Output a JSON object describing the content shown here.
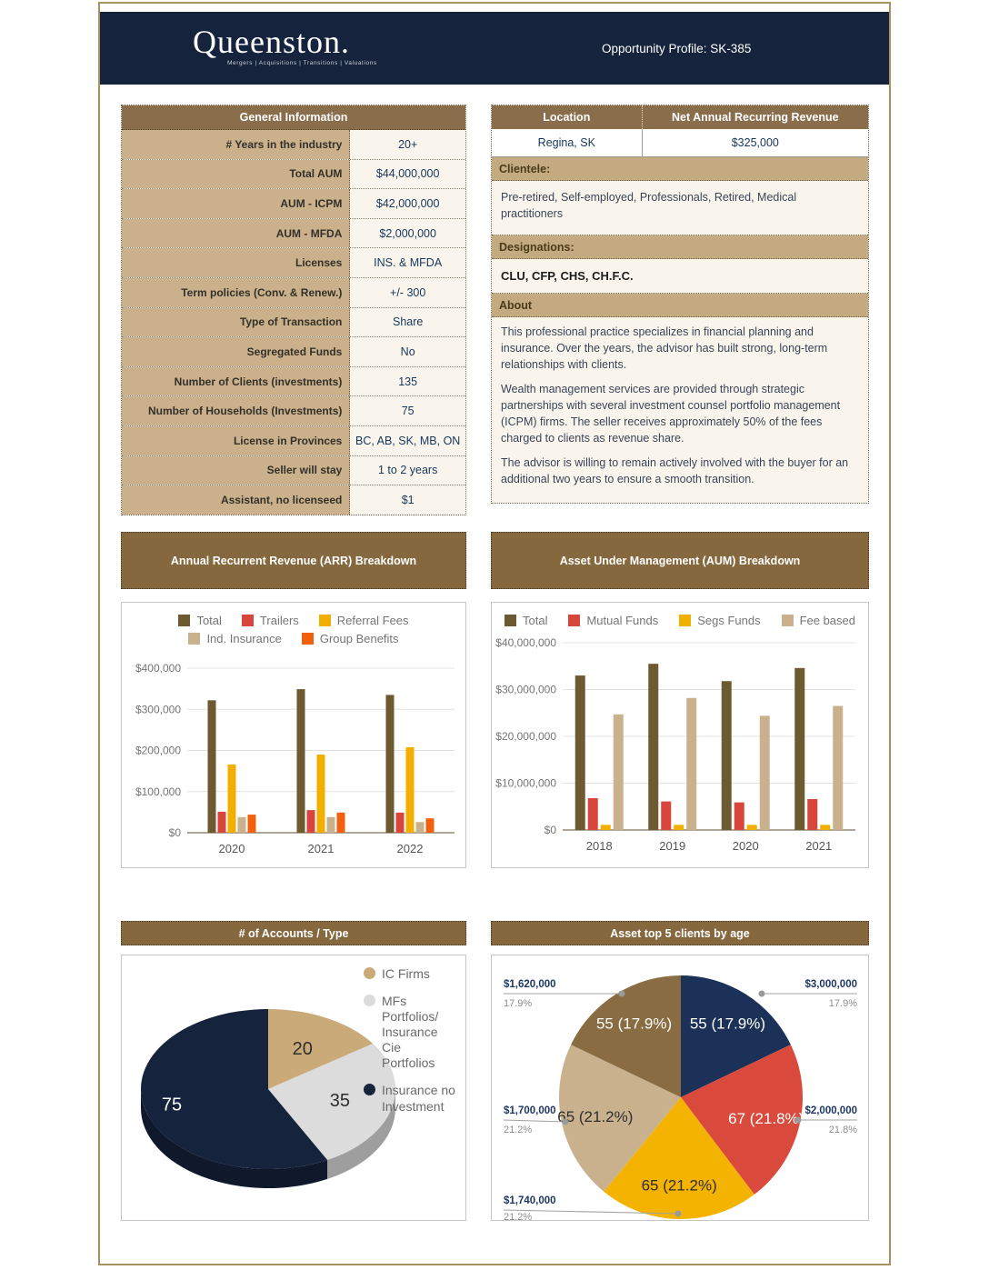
{
  "header": {
    "logo": "Queenston.",
    "tagline": "Mergers | Acquisitions | Transitions | Valuations",
    "profile_label": "Opportunity Profile: SK-385"
  },
  "general_info": {
    "title": "General Information",
    "rows": [
      {
        "label": "# Years in the industry",
        "value": "20+"
      },
      {
        "label": "Total AUM",
        "value": "$44,000,000"
      },
      {
        "label": "AUM - ICPM",
        "value": "$42,000,000"
      },
      {
        "label": "AUM  - MFDA",
        "value": "$2,000,000"
      },
      {
        "label": "Licenses",
        "value": "INS. & MFDA"
      },
      {
        "label": "Term policies (Conv. & Renew.)",
        "value": "+/- 300"
      },
      {
        "label": "Type of Transaction",
        "value": "Share"
      },
      {
        "label": "Segregated Funds",
        "value": "No"
      },
      {
        "label": "Number of Clients (investments)",
        "value": "135"
      },
      {
        "label": "Number of Households (Investments)",
        "value": "75"
      },
      {
        "label": "License in  Provinces",
        "value": "BC, AB, SK, MB, ON"
      },
      {
        "label": "Seller will stay",
        "value": "1 to 2 years"
      },
      {
        "label": "Assistant, no licenseed",
        "value": "$1"
      }
    ]
  },
  "location_table": {
    "location_header": "Location",
    "revenue_header": "Net Annual Recurring Revenue",
    "location": "Regina, SK",
    "revenue": "$325,000"
  },
  "clientele": {
    "title": "Clientele:",
    "text": "Pre-retired, Self-employed, Professionals, Retired, Medical practitioners"
  },
  "designations": {
    "title": "Designations:",
    "text": "CLU, CFP, CHS, CH.F.C."
  },
  "about": {
    "title": "About",
    "paragraphs": [
      "This professional practice specializes in financial planning and insurance. Over the years, the advisor has built strong, long-term relationships with clients.",
      "Wealth management services are provided through strategic partnerships with several investment counsel portfolio management (ICPM) firms. The seller receives approximately 50% of the fees charged to clients as revenue share.",
      "The advisor is willing to remain actively involved with the buyer for an additional two years to ensure a smooth transition."
    ]
  },
  "chart_data": [
    {
      "id": "arr",
      "type": "bar",
      "title": "Annual Recurrent Revenue (ARR) Breakdown",
      "categories": [
        "2020",
        "2021",
        "2022"
      ],
      "series": [
        {
          "name": "Total",
          "color": "#6e5a31",
          "values": [
            322000,
            349000,
            335000
          ]
        },
        {
          "name": "Trailers",
          "color": "#d8453a",
          "values": [
            51000,
            55000,
            49000
          ]
        },
        {
          "name": "Referral Fees",
          "color": "#f2af00",
          "values": [
            166000,
            190000,
            208000
          ]
        },
        {
          "name": "Ind. Insurance",
          "color": "#c9b18e",
          "values": [
            38000,
            38000,
            26000
          ]
        },
        {
          "name": "Group Benefits",
          "color": "#f2600e",
          "values": [
            44000,
            49000,
            35000
          ]
        }
      ],
      "ylim": [
        0,
        400000
      ],
      "yticks": [
        {
          "value": 0,
          "label": "$0"
        },
        {
          "value": 100000,
          "label": "$100,000"
        },
        {
          "value": 200000,
          "label": "$200,000"
        },
        {
          "value": 300000,
          "label": "$300,000"
        },
        {
          "value": 400000,
          "label": "$400,000"
        }
      ],
      "grid": true,
      "legend_position": "top"
    },
    {
      "id": "aum",
      "type": "bar",
      "title": "Asset Under Management (AUM) Breakdown",
      "categories": [
        "2018",
        "2019",
        "2020",
        "2021"
      ],
      "series": [
        {
          "name": "Total",
          "color": "#6e5a31",
          "values": [
            33000000,
            35500000,
            31800000,
            34600000
          ]
        },
        {
          "name": "Mutual Funds",
          "color": "#d8453a",
          "values": [
            6800000,
            6100000,
            5900000,
            6600000
          ]
        },
        {
          "name": "Segs Funds",
          "color": "#f2af00",
          "values": [
            1100000,
            1100000,
            1100000,
            1100000
          ]
        },
        {
          "name": "Fee based",
          "color": "#c9b18e",
          "values": [
            24700000,
            28200000,
            24400000,
            26500000
          ]
        }
      ],
      "ylim": [
        0,
        40000000
      ],
      "yticks": [
        {
          "value": 0,
          "label": "$0"
        },
        {
          "value": 10000000,
          "label": "$10,000,000"
        },
        {
          "value": 20000000,
          "label": "$20,000,000"
        },
        {
          "value": 30000000,
          "label": "$30,000,000"
        },
        {
          "value": 40000000,
          "label": "$40,000,000"
        }
      ],
      "grid": true,
      "legend_position": "top"
    },
    {
      "id": "accounts",
      "type": "pie",
      "style3d": true,
      "title": "# of Accounts / Type",
      "legend_position": "right",
      "slices": [
        {
          "label": "IC Firms",
          "value": 20,
          "color": "#c9aa78"
        },
        {
          "label": "MFs Portfolios/ Insurance Cie Portfolios",
          "value": 35,
          "color": "#dcdcdc"
        },
        {
          "label": "Insurance no Investment",
          "value": 75,
          "color": "#16233d"
        }
      ]
    },
    {
      "id": "top5",
      "type": "pie",
      "style3d": false,
      "title": "Asset top 5 clients by age",
      "legend_position": "none",
      "slices": [
        {
          "label": "55 (17.9%)",
          "value": 17.9,
          "amount": "$3,000,000",
          "pct": "17.9%",
          "color": "#1b3158"
        },
        {
          "label": "67 (21.8%)",
          "value": 21.8,
          "amount": "$2,000,000",
          "pct": "21.8%",
          "color": "#da4a3c"
        },
        {
          "label": "65 (21.2%)",
          "value": 21.2,
          "amount": "$1,740,000",
          "pct": "21.2%",
          "color": "#f5b301"
        },
        {
          "label": "65 (21.2%)",
          "value": 21.2,
          "amount": "$1,700,000",
          "pct": "21.2%",
          "color": "#c9b18e"
        },
        {
          "label": "55 (17.9%)",
          "value": 17.9,
          "amount": "$1,620,000",
          "pct": "17.9%",
          "color": "#8a6c42"
        }
      ]
    }
  ],
  "colors": {
    "navy": "#16233c",
    "page_border": "#a6925e",
    "table_header_brown": "#8a6e4b",
    "banner_brown": "#86683f",
    "label_tan": "#cab18b",
    "band_tan": "#c3aa80",
    "off_white": "#f9f5ec",
    "value_text_navy": "#17365c",
    "callout_gray": "#8c8c8c"
  }
}
